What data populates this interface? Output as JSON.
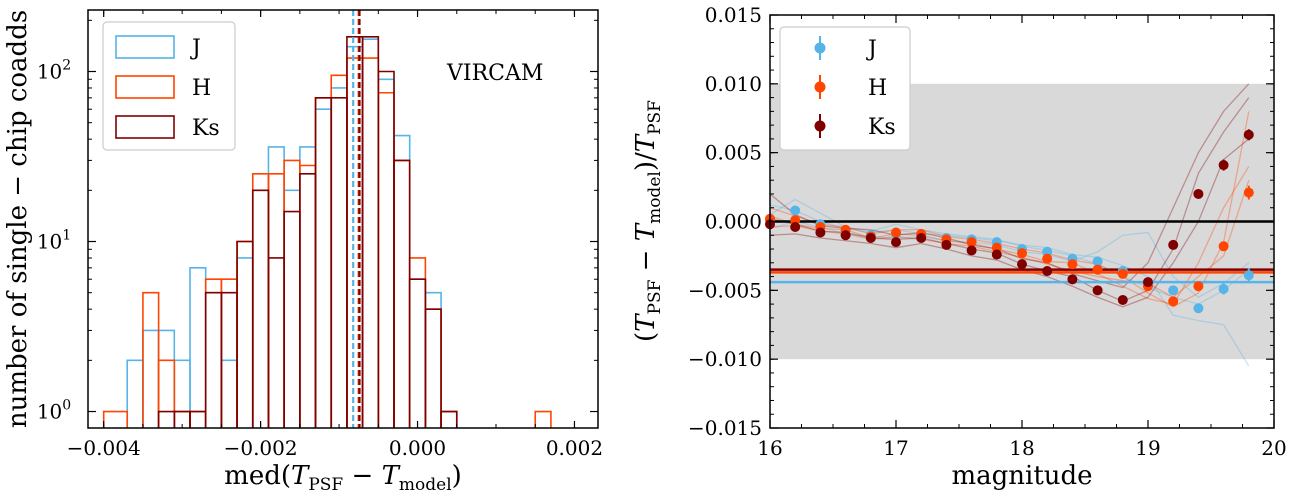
{
  "chart_data": [
    {
      "type": "histogram",
      "title": "",
      "annotation": "VIRCAM",
      "xlabel": "med(T_PSF − T_model)",
      "xlabel_parts": {
        "pre": "med(",
        "t1": "T",
        "s1": "PSF",
        "mid": " − ",
        "t2": "T",
        "s2": "model",
        "post": ")"
      },
      "ylabel": "number of single − chip coadds",
      "xlim": [
        -0.0042,
        0.0023
      ],
      "ylim_log": [
        0.8,
        230
      ],
      "yscale": "log",
      "x_ticks": [
        -0.004,
        -0.002,
        0.0,
        0.002
      ],
      "x_tick_labels": [
        "−0.004",
        "−0.002",
        "0.000",
        "0.002"
      ],
      "y_tick_labels": [
        {
          "value": 1,
          "base": "10",
          "exp": "0"
        },
        {
          "value": 10,
          "base": "10",
          "exp": "1"
        },
        {
          "value": 100,
          "base": "10",
          "exp": "2"
        }
      ],
      "bin_edges": [
        -0.004,
        -0.0037,
        -0.0035,
        -0.0033,
        -0.0031,
        -0.0029,
        -0.0027,
        -0.0025,
        -0.0023,
        -0.0021,
        -0.0019,
        -0.0017,
        -0.0015,
        -0.0013,
        -0.0011,
        -0.0009,
        -0.0007,
        -0.0005,
        -0.0003,
        -0.0001,
        0.0001,
        0.0003,
        0.0005,
        0.0007,
        0.0009,
        0.0011,
        0.0013,
        0.0015,
        0.0017,
        0.0019
      ],
      "legend": {
        "position": "top-left"
      },
      "series": [
        {
          "name": "J",
          "color": "#56b4e9",
          "median": -0.00082,
          "counts": [
            0,
            2,
            3,
            3,
            2,
            7,
            5,
            2,
            8,
            20,
            36,
            20,
            36,
            60,
            80,
            140,
            155,
            90,
            42,
            6,
            5,
            1,
            0,
            0,
            0,
            0,
            0,
            0,
            0
          ]
        },
        {
          "name": "H",
          "color": "#ff4500",
          "median": -0.00075,
          "counts": [
            1,
            0,
            5,
            2,
            1,
            1,
            6,
            6,
            10,
            25,
            25,
            30,
            28,
            70,
            95,
            120,
            120,
            75,
            30,
            8,
            4,
            1,
            0,
            0,
            0,
            0,
            0,
            1,
            0
          ]
        },
        {
          "name": "Ks",
          "color": "#800000",
          "median": -0.00074,
          "counts": [
            0,
            0,
            0,
            1,
            1,
            1,
            5,
            5,
            10,
            20,
            8,
            15,
            25,
            70,
            70,
            160,
            160,
            100,
            30,
            6,
            4,
            1,
            0,
            0,
            0,
            0,
            0,
            0,
            0
          ]
        }
      ]
    },
    {
      "type": "scatter",
      "title": "",
      "xlabel": "magnitude",
      "ylabel": "(T_PSF − T_model)/T_PSF",
      "ylabel_parts": {
        "pre": "(",
        "t1": "T",
        "s1": "PSF",
        "mid": " − ",
        "t2": "T",
        "s2": "model",
        "close": ")/",
        "t3": "T",
        "s3": "PSF"
      },
      "xlim": [
        16,
        20
      ],
      "ylim": [
        -0.015,
        0.015
      ],
      "x_ticks": [
        16,
        17,
        18,
        19,
        20
      ],
      "x_tick_labels": [
        "16",
        "17",
        "18",
        "19",
        "20"
      ],
      "y_ticks": [
        -0.015,
        -0.01,
        -0.005,
        0.0,
        0.005,
        0.01,
        0.015
      ],
      "y_tick_labels": [
        "−0.015",
        "−0.010",
        "−0.005",
        "0.000",
        "0.005",
        "0.010",
        "0.015"
      ],
      "shaded_band": [
        -0.01,
        0.01
      ],
      "zero_line": 0.0,
      "legend": {
        "position": "top-left"
      },
      "x": [
        16.0,
        16.2,
        16.4,
        16.6,
        16.8,
        17.0,
        17.2,
        17.4,
        17.6,
        17.8,
        18.0,
        18.2,
        18.4,
        18.6,
        18.8,
        19.0,
        19.2,
        19.4,
        19.6,
        19.8
      ],
      "series": [
        {
          "name": "J",
          "color": "#56b4e9",
          "median_line": -0.0044,
          "y": [
            0.0001,
            0.0008,
            -0.0002,
            -0.0007,
            -0.001,
            -0.0009,
            -0.001,
            -0.0012,
            -0.0013,
            -0.0015,
            -0.002,
            -0.0022,
            -0.0027,
            -0.0029,
            -0.0036,
            -0.0045,
            -0.005,
            -0.0063,
            -0.0049,
            -0.0039
          ],
          "yerr": [
            0.0002,
            0.0002,
            0.0002,
            0.0002,
            0.0002,
            0.0002,
            0.0002,
            0.0002,
            0.0002,
            0.0002,
            0.0002,
            0.0002,
            0.0002,
            0.0002,
            0.0002,
            0.0003,
            0.0003,
            0.0003,
            0.0004,
            0.0005
          ]
        },
        {
          "name": "H",
          "color": "#ff4500",
          "median_line": -0.0037,
          "y": [
            0.0002,
            0.0001,
            -0.0004,
            -0.0006,
            -0.0011,
            -0.0008,
            -0.0009,
            -0.0013,
            -0.0015,
            -0.0019,
            -0.0023,
            -0.0027,
            -0.0031,
            -0.0035,
            -0.0038,
            -0.0047,
            -0.0058,
            -0.0047,
            -0.0018,
            0.0021
          ],
          "yerr": [
            0.0002,
            0.0002,
            0.0002,
            0.0002,
            0.0002,
            0.0002,
            0.0002,
            0.0002,
            0.0002,
            0.0002,
            0.0002,
            0.0002,
            0.0002,
            0.0002,
            0.0002,
            0.0002,
            0.0003,
            0.0003,
            0.0003,
            0.0005
          ]
        },
        {
          "name": "Ks",
          "color": "#800000",
          "median_line": -0.0035,
          "y": [
            -0.0002,
            -0.0004,
            -0.0008,
            -0.001,
            -0.0012,
            -0.0015,
            -0.0012,
            -0.0017,
            -0.0021,
            -0.0024,
            -0.0031,
            -0.0036,
            -0.0042,
            -0.005,
            -0.0057,
            -0.0044,
            -0.0017,
            0.002,
            0.0041,
            0.0063
          ],
          "yerr": [
            0.0002,
            0.0002,
            0.0002,
            0.0002,
            0.0002,
            0.0002,
            0.0002,
            0.0002,
            0.0002,
            0.0002,
            0.0002,
            0.0002,
            0.0002,
            0.0002,
            0.0002,
            0.0002,
            0.0003,
            0.0003,
            0.0004,
            0.0004
          ]
        }
      ],
      "thin_lines": [
        {
          "color": "#56b4e9",
          "y": [
            0.0012,
            0.0008,
            0.0,
            -0.0005,
            -0.0008,
            -0.0006,
            -0.0009,
            -0.001,
            -0.0012,
            -0.0014,
            -0.0017,
            -0.0019,
            -0.0024,
            -0.0026,
            -0.0032,
            -0.004,
            -0.0068,
            -0.0072,
            -0.0075,
            -0.0105
          ]
        },
        {
          "color": "#56b4e9",
          "y": [
            -0.0005,
            0.0,
            -0.0004,
            -0.0009,
            -0.0011,
            -0.0012,
            -0.0011,
            -0.0014,
            -0.0015,
            -0.0017,
            -0.0022,
            -0.0024,
            -0.0029,
            -0.0022,
            -0.001,
            -0.0008,
            -0.004,
            -0.0055,
            -0.0045,
            -0.003
          ]
        },
        {
          "color": "#56b4e9",
          "y": [
            0.0005,
            0.0016,
            0.0006,
            -0.0004,
            -0.0007,
            -0.0002,
            -0.0006,
            -0.0009,
            -0.0011,
            -0.0013,
            -0.0018,
            -0.0021,
            -0.0025,
            -0.0031,
            -0.004,
            -0.0048,
            -0.0055,
            -0.006,
            -0.005,
            -0.0035
          ]
        },
        {
          "color": "#ff4500",
          "y": [
            0.001,
            0.0004,
            -0.0002,
            -0.0004,
            -0.0009,
            -0.0006,
            -0.0006,
            -0.0011,
            -0.0013,
            -0.0016,
            -0.002,
            -0.0023,
            -0.0028,
            -0.0031,
            -0.004,
            -0.0052,
            -0.0062,
            -0.0052,
            -0.0015,
            0.008
          ]
        },
        {
          "color": "#ff4500",
          "y": [
            -0.0004,
            -0.0003,
            -0.0007,
            -0.0009,
            -0.0013,
            -0.0011,
            -0.0013,
            -0.0016,
            -0.0018,
            -0.0022,
            -0.0026,
            -0.0031,
            -0.0036,
            -0.004,
            -0.0043,
            -0.0045,
            -0.0055,
            -0.004,
            -0.0025,
            0.003
          ]
        },
        {
          "color": "#ff4500",
          "y": [
            0.0004,
            -0.0002,
            -0.0005,
            -0.0006,
            -0.0012,
            -0.0009,
            -0.001,
            -0.0014,
            -0.0016,
            -0.002,
            -0.0024,
            -0.0029,
            -0.003,
            -0.0038,
            -0.0047,
            -0.0056,
            -0.006,
            -0.003,
            0.001,
            0.004
          ]
        },
        {
          "color": "#800000",
          "y": [
            0.002,
            0.0005,
            -0.0003,
            -0.0005,
            -0.0006,
            -0.001,
            -0.0008,
            -0.0012,
            -0.0017,
            -0.002,
            -0.0027,
            -0.003,
            -0.0038,
            -0.0043,
            -0.0048,
            -0.003,
            0.001,
            0.005,
            0.008,
            0.01
          ]
        },
        {
          "color": "#800000",
          "y": [
            -0.001,
            -0.0009,
            -0.0012,
            -0.0014,
            -0.0016,
            -0.0019,
            -0.0016,
            -0.002,
            -0.0025,
            -0.0028,
            -0.0035,
            -0.004,
            -0.0047,
            -0.0055,
            -0.0062,
            -0.0055,
            -0.003,
            0.0,
            0.0045,
            0.006
          ]
        },
        {
          "color": "#800000",
          "y": [
            0.0002,
            -0.0002,
            -0.0007,
            -0.0008,
            -0.0012,
            -0.0013,
            -0.0012,
            -0.0016,
            -0.002,
            -0.0023,
            -0.0031,
            -0.0036,
            -0.004,
            -0.005,
            -0.0058,
            -0.005,
            -0.002,
            0.0035,
            0.0065,
            0.009
          ]
        }
      ]
    }
  ]
}
